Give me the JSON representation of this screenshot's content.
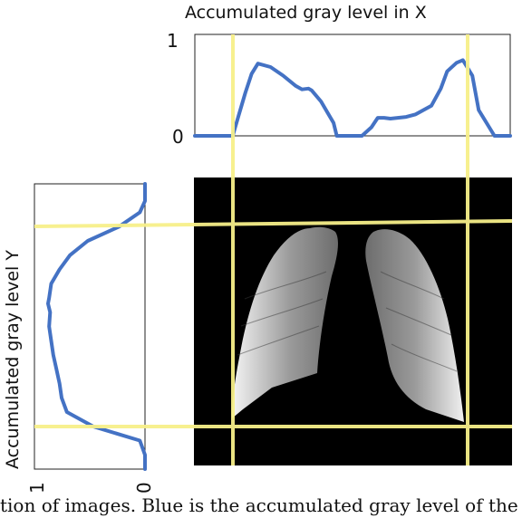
{
  "chart_data": [
    {
      "type": "line",
      "title": "Accumulated gray level in X",
      "ylim": [
        0,
        1
      ],
      "yticks": [
        "0",
        "1"
      ],
      "color": "#4472c4",
      "x": [
        0,
        0.03,
        0.08,
        0.12,
        0.14,
        0.16,
        0.18,
        0.2,
        0.24,
        0.28,
        0.32,
        0.34,
        0.36,
        0.37,
        0.4,
        0.44,
        0.45,
        0.47,
        0.49,
        0.53,
        0.56,
        0.58,
        0.6,
        0.62,
        0.67,
        0.7,
        0.75,
        0.78,
        0.8,
        0.83,
        0.85,
        0.88,
        0.9,
        0.95,
        1.0
      ],
      "values": [
        0,
        0,
        0,
        0,
        0.25,
        0.5,
        0.72,
        0.84,
        0.8,
        0.7,
        0.58,
        0.54,
        0.55,
        0.53,
        0.4,
        0.15,
        0,
        0,
        0,
        0,
        0.1,
        0.21,
        0.21,
        0.2,
        0.22,
        0.25,
        0.35,
        0.55,
        0.75,
        0.85,
        0.88,
        0.7,
        0.3,
        0,
        0
      ]
    },
    {
      "type": "line",
      "title": "Accumulated gray level Y",
      "xlim": [
        1,
        0
      ],
      "xticks": [
        "1",
        "0"
      ],
      "color": "#4472c4",
      "y": [
        0,
        0.06,
        0.1,
        0.15,
        0.2,
        0.25,
        0.3,
        0.35,
        0.4,
        0.42,
        0.45,
        0.5,
        0.55,
        0.6,
        0.65,
        0.7,
        0.75,
        0.8,
        0.85,
        0.9,
        0.95,
        1.0
      ],
      "values": [
        0,
        0,
        0.05,
        0.25,
        0.55,
        0.72,
        0.82,
        0.9,
        0.92,
        0.93,
        0.91,
        0.92,
        0.9,
        0.88,
        0.85,
        0.82,
        0.8,
        0.75,
        0.5,
        0.05,
        0,
        0
      ]
    }
  ],
  "figure": {
    "x_title": "Accumulated gray level in X",
    "y_title": "Accumulated gray level Y",
    "top_tick_1": "1",
    "top_tick_0": "0",
    "left_tick_1": "1",
    "left_tick_0": "0",
    "caption": "tion of images. Blue is the accumulated gray level of the image and"
  }
}
